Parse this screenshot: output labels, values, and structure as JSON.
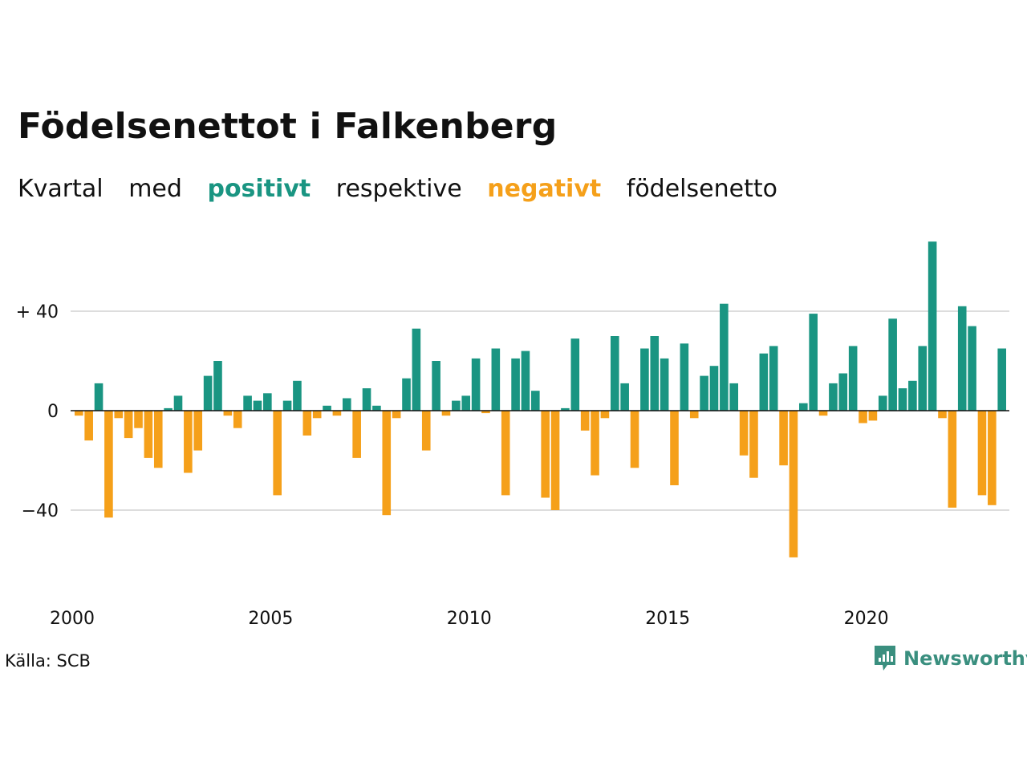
{
  "title": "Födelsenettot i Falkenberg",
  "subtitle": {
    "w1": "Kvartal",
    "w2": "med",
    "positive_word": "positivt",
    "w3": "respektive",
    "negative_word": "negativt",
    "w4": "födelsenetto"
  },
  "colors": {
    "positive": "#1a9582",
    "negative": "#f5a01a",
    "grid": "#dddddd",
    "text": "#111111",
    "brand": "#3a8f7f"
  },
  "source": "Källa: SCB",
  "brand": {
    "name": "Newsworthy",
    "icon": "newsworthy-logo-icon"
  },
  "chart_data": {
    "type": "bar",
    "title": "Födelsenettot i Falkenberg",
    "xlabel": "",
    "ylabel": "",
    "ylim": [
      -62,
      70
    ],
    "yticks": [
      40,
      0,
      -40
    ],
    "ytick_labels": [
      "+ 40",
      "0",
      "−40"
    ],
    "x_start_year": 2000,
    "periods_per_year": 4,
    "xticks": [
      2000,
      2005,
      2010,
      2015,
      2020
    ],
    "xtick_labels": [
      "2000",
      "2005",
      "2010",
      "2015",
      "2020"
    ],
    "grid": true,
    "legend": "none",
    "values": [
      -2,
      -12,
      11,
      -43,
      -3,
      -11,
      -7,
      -19,
      -23,
      1,
      6,
      -25,
      -16,
      14,
      20,
      -2,
      -7,
      6,
      4,
      7,
      -34,
      4,
      12,
      -10,
      -3,
      2,
      -2,
      5,
      -19,
      9,
      2,
      -42,
      -3,
      13,
      33,
      -16,
      20,
      -2,
      4,
      6,
      21,
      -1,
      25,
      -34,
      21,
      24,
      8,
      -35,
      -40,
      1,
      29,
      -8,
      -26,
      -3,
      30,
      11,
      -23,
      25,
      30,
      21,
      -30,
      27,
      -3,
      14,
      18,
      43,
      11,
      -18,
      -27,
      23,
      26,
      -22,
      -59,
      3,
      39,
      -2,
      11,
      15,
      26,
      -5,
      -4,
      6,
      37,
      9,
      12,
      26,
      68,
      -3,
      -39,
      42,
      34,
      -34,
      -38,
      25
    ]
  }
}
